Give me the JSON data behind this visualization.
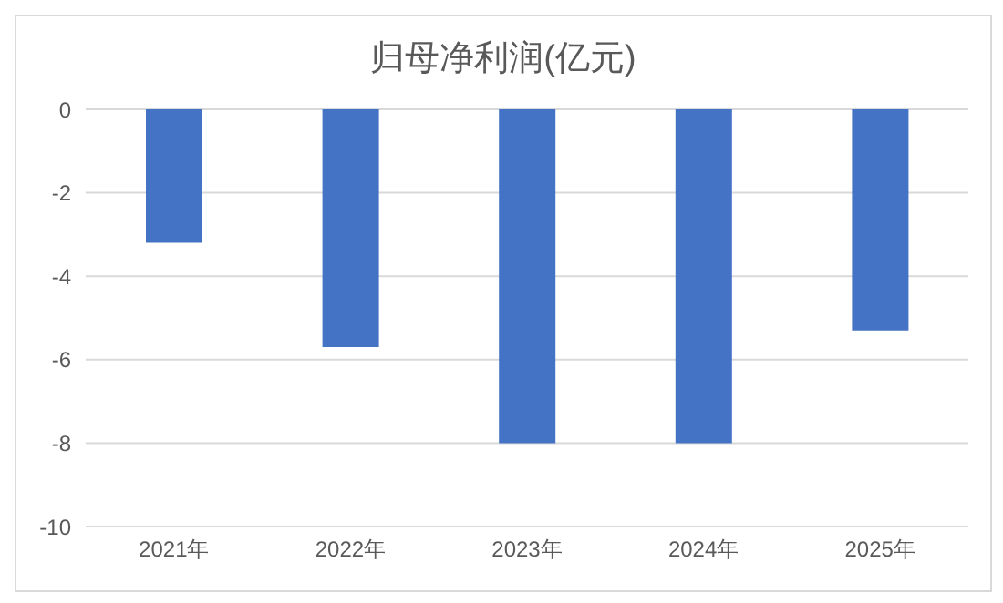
{
  "chart_data": {
    "type": "bar",
    "title": "归母净利润(亿元)",
    "categories": [
      "2021年",
      "2022年",
      "2023年",
      "2024年",
      "2025年"
    ],
    "values": [
      -3.2,
      -5.7,
      -8.0,
      -8.0,
      -5.3
    ],
    "color": "#4472c4",
    "ylim": [
      -10,
      0
    ],
    "yticks": [
      -10,
      -8,
      -6,
      -4,
      -2,
      0
    ],
    "grid": "y"
  }
}
